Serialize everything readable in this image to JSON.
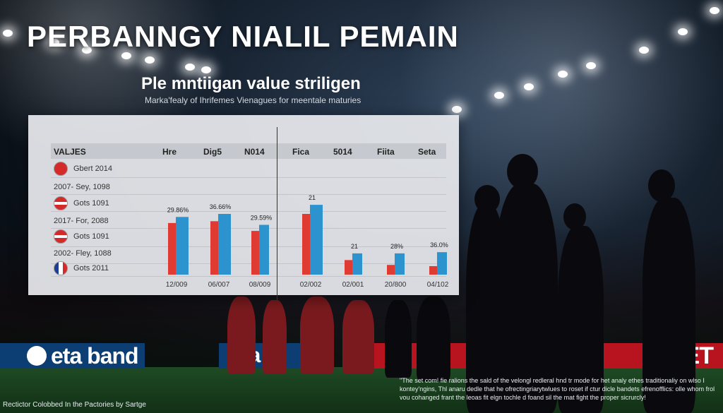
{
  "page": {
    "title": "PERBANNGY NIALIL PEMAIN",
    "subtitle": "Ple mntiigan value striligen",
    "caption": "Marka'fealy of Ihrifemes Vienagues for meentale maturies"
  },
  "table": {
    "header_label": "VALJES",
    "columns": [
      "Hre",
      "Dig5",
      "N014",
      "Fica",
      "5014",
      "Fiita",
      "Seta"
    ],
    "rows": [
      {
        "flag": "flag-redsolid",
        "label": "Gbert 2014"
      },
      {
        "flag": "",
        "label": "2007- Sey, 1098"
      },
      {
        "flag": "flag-red",
        "label": "Gots 1091"
      },
      {
        "flag": "",
        "label": "2017- For, 2088"
      },
      {
        "flag": "flag-red",
        "label": "Gots 1091"
      },
      {
        "flag": "",
        "label": "2002- Fley, 1088"
      },
      {
        "flag": "flag-fr",
        "label": "Gots 2011"
      }
    ]
  },
  "colors": {
    "series_a": "#e03b33",
    "series_b": "#2d93cf"
  },
  "chart_data": {
    "type": "bar",
    "categories": [
      "12/009",
      "06/007",
      "08/009",
      "02/002",
      "02/001",
      "20/800",
      "04/102"
    ],
    "series": [
      {
        "values": [
          0.85,
          0.88,
          0.72,
          1.0,
          0.24,
          0.16,
          0.14
        ]
      },
      {
        "values": [
          0.95,
          1.0,
          0.82,
          1.15,
          0.35,
          0.35,
          0.37
        ]
      }
    ],
    "data_labels": [
      "29.86%",
      "36.66%",
      "29.59%",
      "21",
      "21",
      "28%",
      "36.0%"
    ],
    "ylim": [
      0,
      1.4
    ]
  },
  "ads": {
    "left": "eta band",
    "mid": "eta",
    "right": "RIET"
  },
  "footer": {
    "right": "\"The set com! fie ralions the sald of the velongl redleral hnd tr mode for het analy ethes traditionaliy on wlso I kontey'ngins, Thl anaru dedle that he ofrectingriarytwlues to roset if ctur dicle bandets efrenofflics: olle whom frol vou cohanged frant the leoas fit elgn tochle d foand sil the mat fight the proper sicrurcly!",
    "left": "Rectictor Colobbed In the Pactories by Sartge"
  }
}
